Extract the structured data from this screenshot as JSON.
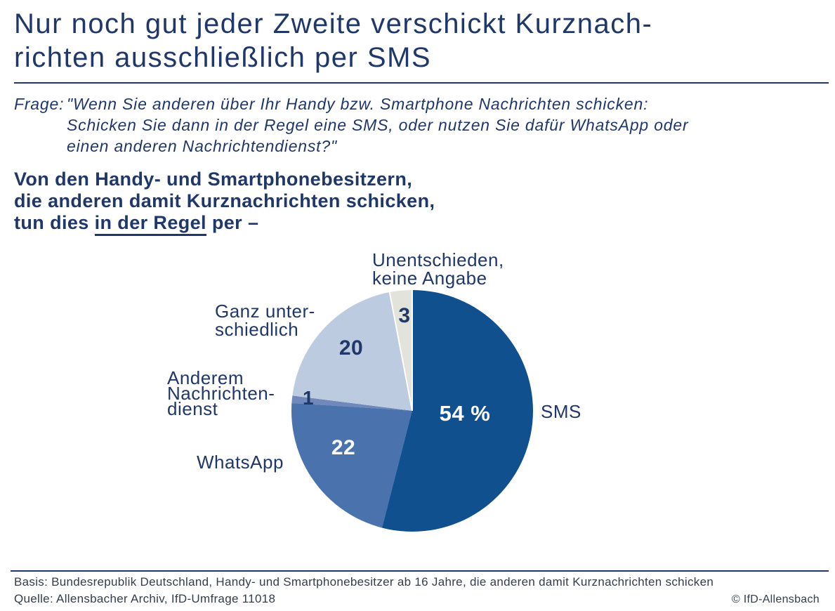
{
  "page": {
    "background": "#ffffff",
    "accent_navy": "#1f3769",
    "footer_ink": "#333d4f"
  },
  "title": {
    "lines": [
      "Nur noch gut jeder Zweite verschickt Kurznach-",
      "richten ausschließlich per SMS"
    ]
  },
  "question": {
    "label": "Frage:",
    "lines": [
      "\"Wenn Sie anderen über Ihr Handy bzw. Smartphone Nachrichten schicken:",
      "Schicken Sie dann in der Regel eine SMS, oder nutzen Sie dafür WhatsApp oder",
      "einen anderen Nachrichtendienst?\""
    ]
  },
  "statement": {
    "lines": [
      "Von den Handy- und Smartphonebesitzern,",
      "die anderen damit Kurznachrichten schicken,"
    ],
    "line3": {
      "pre": "tun dies ",
      "underline": "in der Regel",
      "post": " per –"
    }
  },
  "chart_data": {
    "type": "pie",
    "unit": "percent",
    "start_angle_deg": 0,
    "direction": "clockwise",
    "total": 100,
    "slices": [
      {
        "label": "SMS",
        "value": 54,
        "value_display": "54 %",
        "color": "#11508f",
        "value_text_color": "#ffffff"
      },
      {
        "label": "WhatsApp",
        "value": 22,
        "value_display": "22",
        "color": "#4a73ae",
        "value_text_color": "#ffffff"
      },
      {
        "label": "Anderem Nachrichtendienst",
        "value": 1,
        "value_display": "1",
        "color": "#6f8aba",
        "value_text_color": "#1f3769"
      },
      {
        "label": "Ganz unterschiedlich",
        "value": 20,
        "value_display": "20",
        "color": "#bccbe0",
        "value_text_color": "#1f3769"
      },
      {
        "label": "Unentschieden, keine Angabe",
        "value": 3,
        "value_display": "3",
        "color": "#e2e3da",
        "value_text_color": "#1f3769"
      }
    ]
  },
  "callouts": {
    "unentschieden": {
      "lines": [
        "Unentschieden,",
        "keine Angabe"
      ]
    },
    "ganz": {
      "lines": [
        "Ganz unter-",
        "schiedlich"
      ]
    },
    "anderem": {
      "lines": [
        "Anderem",
        "Nachrichten-",
        "dienst"
      ]
    },
    "whatsapp": {
      "lines": [
        "WhatsApp"
      ]
    },
    "sms": {
      "lines": [
        "SMS"
      ]
    }
  },
  "footer": {
    "basis": "Basis: Bundesrepublik Deutschland, Handy- und Smartphonebesitzer ab 16 Jahre, die anderen damit Kurznachrichten schicken",
    "quelle": "Quelle: Allensbacher Archiv, IfD-Umfrage 11018",
    "copyright": "© IfD-Allensbach"
  }
}
